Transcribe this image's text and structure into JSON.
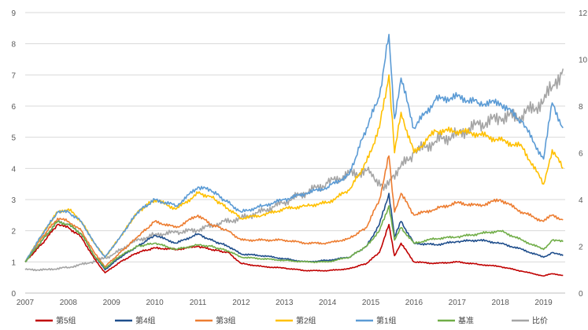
{
  "chart_data": {
    "type": "line",
    "title": "",
    "xlabel": "",
    "ylabel": "",
    "y2label": "",
    "x_ticks": [
      "2007",
      "2008",
      "2009",
      "2010",
      "2011",
      "2012",
      "2013",
      "2014",
      "2015",
      "2016",
      "2017",
      "2018",
      "2019"
    ],
    "ylim": [
      0,
      9
    ],
    "y_ticks": [
      "0",
      "1",
      "2",
      "3",
      "4",
      "5",
      "6",
      "7",
      "8",
      "9"
    ],
    "y2lim": [
      0,
      12
    ],
    "y2_ticks": [
      "0",
      "2",
      "4",
      "6",
      "8",
      "10",
      "12"
    ],
    "grid": true,
    "legend_position": "bottom",
    "series": [
      {
        "name": "第5组",
        "color": "#C00000",
        "axis": "left",
        "x": [
          2007.0,
          2007.4,
          2007.75,
          2008.0,
          2008.3,
          2008.6,
          2008.85,
          2009.2,
          2009.6,
          2010.0,
          2010.5,
          2011.0,
          2011.3,
          2011.7,
          2012.0,
          2012.5,
          2013.0,
          2013.5,
          2014.0,
          2014.5,
          2014.9,
          2015.2,
          2015.42,
          2015.55,
          2015.7,
          2016.0,
          2016.5,
          2017.0,
          2017.5,
          2018.0,
          2018.5,
          2019.0,
          2019.2,
          2019.45
        ],
        "y": [
          1.0,
          1.6,
          2.2,
          2.1,
          1.8,
          1.1,
          0.65,
          1.0,
          1.3,
          1.45,
          1.4,
          1.5,
          1.4,
          1.3,
          0.95,
          0.85,
          0.8,
          0.72,
          0.72,
          0.78,
          0.95,
          1.3,
          2.2,
          1.2,
          1.6,
          1.0,
          0.95,
          1.0,
          0.92,
          0.85,
          0.7,
          0.55,
          0.62,
          0.57
        ]
      },
      {
        "name": "第4组",
        "color": "#1F4E8C",
        "axis": "left",
        "x": [
          2007.0,
          2007.4,
          2007.75,
          2008.0,
          2008.3,
          2008.6,
          2008.85,
          2009.2,
          2009.6,
          2010.0,
          2010.5,
          2011.0,
          2011.3,
          2011.7,
          2012.0,
          2012.5,
          2013.0,
          2013.5,
          2014.0,
          2014.5,
          2014.9,
          2015.2,
          2015.42,
          2015.55,
          2015.7,
          2016.0,
          2016.5,
          2017.0,
          2017.5,
          2018.0,
          2018.5,
          2019.0,
          2019.2,
          2019.45
        ],
        "y": [
          1.0,
          1.7,
          2.3,
          2.2,
          1.9,
          1.2,
          0.75,
          1.15,
          1.5,
          1.85,
          1.6,
          1.9,
          1.7,
          1.5,
          1.25,
          1.2,
          1.1,
          1.0,
          1.05,
          1.15,
          1.5,
          2.2,
          3.2,
          1.8,
          2.3,
          1.6,
          1.55,
          1.65,
          1.7,
          1.6,
          1.4,
          1.15,
          1.3,
          1.2
        ]
      },
      {
        "name": "第3组",
        "color": "#ED7D31",
        "axis": "left",
        "x": [
          2007.0,
          2007.4,
          2007.75,
          2008.0,
          2008.3,
          2008.6,
          2008.85,
          2009.2,
          2009.6,
          2010.0,
          2010.5,
          2011.0,
          2011.3,
          2011.7,
          2012.0,
          2012.5,
          2013.0,
          2013.5,
          2014.0,
          2014.5,
          2014.9,
          2015.2,
          2015.42,
          2015.55,
          2015.7,
          2016.0,
          2016.5,
          2017.0,
          2017.5,
          2018.0,
          2018.5,
          2019.0,
          2019.2,
          2019.45
        ],
        "y": [
          1.0,
          1.8,
          2.4,
          2.3,
          2.0,
          1.3,
          0.85,
          1.3,
          1.8,
          2.3,
          2.1,
          2.5,
          2.2,
          2.0,
          1.7,
          1.7,
          1.7,
          1.6,
          1.6,
          1.75,
          2.1,
          3.0,
          4.4,
          2.6,
          3.2,
          2.5,
          2.7,
          2.9,
          2.8,
          3.0,
          2.6,
          2.3,
          2.5,
          2.35
        ]
      },
      {
        "name": "第2组",
        "color": "#FFC000",
        "axis": "left",
        "x": [
          2007.0,
          2007.4,
          2007.75,
          2008.0,
          2008.3,
          2008.6,
          2008.85,
          2009.2,
          2009.6,
          2010.0,
          2010.5,
          2011.0,
          2011.3,
          2011.7,
          2012.0,
          2012.5,
          2013.0,
          2013.5,
          2014.0,
          2014.5,
          2014.9,
          2015.2,
          2015.42,
          2015.55,
          2015.7,
          2016.0,
          2016.5,
          2017.0,
          2017.5,
          2018.0,
          2018.5,
          2019.0,
          2019.2,
          2019.45
        ],
        "y": [
          1.0,
          1.9,
          2.6,
          2.7,
          2.3,
          1.6,
          1.15,
          1.8,
          2.6,
          3.0,
          2.7,
          3.2,
          3.1,
          2.7,
          2.4,
          2.5,
          2.7,
          2.8,
          2.9,
          3.3,
          4.2,
          5.3,
          7.0,
          4.5,
          5.8,
          4.5,
          5.2,
          5.2,
          5.1,
          4.9,
          4.7,
          3.5,
          4.6,
          4.0
        ]
      },
      {
        "name": "第1组",
        "color": "#5B9BD5",
        "axis": "left",
        "x": [
          2007.0,
          2007.4,
          2007.75,
          2008.0,
          2008.3,
          2008.6,
          2008.85,
          2009.2,
          2009.6,
          2010.0,
          2010.5,
          2011.0,
          2011.3,
          2011.7,
          2012.0,
          2012.5,
          2013.0,
          2013.5,
          2014.0,
          2014.5,
          2014.9,
          2015.2,
          2015.42,
          2015.55,
          2015.7,
          2016.0,
          2016.5,
          2017.0,
          2017.5,
          2018.0,
          2018.5,
          2019.0,
          2019.2,
          2019.45
        ],
        "y": [
          1.0,
          1.9,
          2.6,
          2.6,
          2.3,
          1.6,
          1.15,
          1.8,
          2.6,
          3.0,
          2.8,
          3.4,
          3.3,
          2.9,
          2.6,
          2.8,
          3.0,
          3.2,
          3.4,
          3.8,
          5.3,
          6.3,
          8.3,
          5.6,
          6.9,
          5.3,
          6.2,
          6.3,
          6.1,
          6.1,
          5.5,
          4.3,
          6.1,
          5.3
        ]
      },
      {
        "name": "基准",
        "color": "#70AD47",
        "axis": "left",
        "x": [
          2007.0,
          2007.4,
          2007.75,
          2008.0,
          2008.3,
          2008.6,
          2008.85,
          2009.2,
          2009.6,
          2010.0,
          2010.5,
          2011.0,
          2011.3,
          2011.7,
          2012.0,
          2012.5,
          2013.0,
          2013.5,
          2014.0,
          2014.5,
          2014.9,
          2015.2,
          2015.42,
          2015.55,
          2015.7,
          2016.0,
          2016.5,
          2017.0,
          2017.5,
          2018.0,
          2018.5,
          2019.0,
          2019.2,
          2019.45
        ],
        "y": [
          1.0,
          1.7,
          2.3,
          2.2,
          1.9,
          1.2,
          0.8,
          1.2,
          1.5,
          1.6,
          1.4,
          1.55,
          1.5,
          1.35,
          1.15,
          1.1,
          1.05,
          1.0,
          1.0,
          1.15,
          1.5,
          2.0,
          2.8,
          1.7,
          2.1,
          1.6,
          1.75,
          1.8,
          1.9,
          2.0,
          1.7,
          1.4,
          1.7,
          1.65
        ]
      },
      {
        "name": "比价",
        "color": "#A5A5A5",
        "axis": "right",
        "x": [
          2007.0,
          2007.5,
          2008.0,
          2008.5,
          2009.0,
          2009.5,
          2010.0,
          2010.5,
          2011.0,
          2011.5,
          2012.0,
          2012.5,
          2013.0,
          2013.5,
          2014.0,
          2014.5,
          2015.0,
          2015.3,
          2015.5,
          2016.0,
          2016.5,
          2017.0,
          2017.5,
          2018.0,
          2018.5,
          2019.0,
          2019.2,
          2019.45
        ],
        "y": [
          1.0,
          1.0,
          1.1,
          1.3,
          1.6,
          2.2,
          2.5,
          2.6,
          2.7,
          3.0,
          3.2,
          3.5,
          3.9,
          4.3,
          4.7,
          5.1,
          5.2,
          4.4,
          5.0,
          6.0,
          6.5,
          6.8,
          7.2,
          7.5,
          7.6,
          8.2,
          8.8,
          9.6
        ]
      }
    ]
  }
}
